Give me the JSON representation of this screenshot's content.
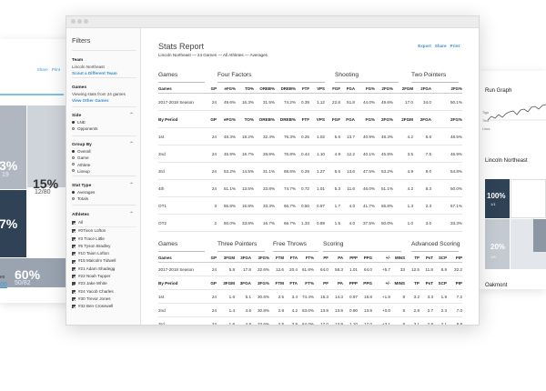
{
  "bg_left": {
    "links": [
      "Share",
      "Print"
    ],
    "tiles": [
      {
        "big": "3%",
        "small": "19"
      },
      {
        "big": "7%",
        "small": ""
      },
      {
        "big": "15%",
        "small": "12/80"
      },
      {
        "big": "60%",
        "small": "50/82"
      }
    ],
    "bottom_text": "es",
    "bottom_link": "00"
  },
  "bg_right": {
    "title": "Run Graph",
    "chart_labels": [
      "Tiga",
      "Tied",
      "Lincs"
    ],
    "title2": "Lincoln Northeast",
    "tiles": [
      {
        "big": "100%",
        "small": "1/1"
      },
      {
        "big": "20%",
        "small": "1/5"
      }
    ],
    "sub": "Oakmont"
  },
  "sidebar": {
    "heading": "Filters",
    "team": {
      "title": "Team",
      "value": "Lincoln Northeast",
      "link": "Scout a Different Team"
    },
    "games": {
      "title": "Games",
      "value": "Viewing stats from 24 games",
      "link": "View Other Games"
    },
    "side": {
      "title": "Side",
      "options": [
        {
          "label": "LNE",
          "on": true
        },
        {
          "label": "Opponents",
          "on": false
        }
      ]
    },
    "group_by": {
      "title": "Group By",
      "options": [
        {
          "label": "Overall",
          "on": true
        },
        {
          "label": "Game",
          "on": false
        },
        {
          "label": "Athlete",
          "on": false
        },
        {
          "label": "Lineup",
          "on": false
        }
      ]
    },
    "stat_type": {
      "title": "Stat Type",
      "options": [
        {
          "label": "Averages",
          "on": true
        },
        {
          "label": "Totals",
          "on": false
        }
      ]
    },
    "athletes": {
      "title": "Athletes",
      "items": [
        "All",
        "#0Tivon Lofton",
        "#3 Trace Little",
        "#5 Tyson Bradley",
        "#10 Taion Lofton",
        "#15 Malcolm Tidwell",
        "#21 Adam Shadegg",
        "#22 Noah Tupper",
        "#23 Jake White",
        "#24 Yacob Charles",
        "#30 Trevor Jones",
        "#32 Ben Crosswell"
      ]
    }
  },
  "report": {
    "title": "Stats Report",
    "breadcrumb": "Lincoln Northeast — 24 Games — All Athletes — Averages",
    "actions": [
      "Export",
      "Share",
      "Print"
    ]
  },
  "table1": {
    "groups": [
      "Games",
      "Four Factors",
      "Shooting",
      "Two Pointers"
    ],
    "headers": [
      "Games",
      "GP",
      "eFG%",
      "TO%",
      "OREB%",
      "DREB%",
      "FTF",
      "VPS",
      "FGF",
      "FGA",
      "FG%",
      "2FG%",
      "2FGM",
      "2FGA",
      "2FG%"
    ],
    "rows": [
      [
        "2017-2018 Season",
        "24",
        "49.6%",
        "16.3%",
        "31.5%",
        "74.2%",
        "0.39",
        "1.12",
        "22.8",
        "51.8",
        "44.0%",
        "49.6%",
        "17.0",
        "34.0",
        "50.1%"
      ],
      [
        "By Period",
        "GP",
        "eFG%",
        "TO%",
        "OREB%",
        "DREB%",
        "FTF",
        "VPS",
        "FGF",
        "FGA",
        "FG%",
        "2FG%",
        "2FGM",
        "2FGA",
        "2FG%"
      ],
      [
        "1st",
        "24",
        "48.3%",
        "18.2%",
        "32.4%",
        "76.3%",
        "0.25",
        "1.02",
        "5.6",
        "13.7",
        "40.9%",
        "48.3%",
        "4.2",
        "8.6",
        "48.5%"
      ],
      [
        "2nd",
        "24",
        "45.9%",
        "16.7%",
        "28.9%",
        "76.8%",
        "0.44",
        "1.10",
        "4.9",
        "12.2",
        "40.1%",
        "45.9%",
        "3.5",
        "7.5",
        "46.9%"
      ],
      [
        "3rd",
        "24",
        "53.2%",
        "14.5%",
        "31.1%",
        "68.6%",
        "0.29",
        "1.27",
        "6.5",
        "13.6",
        "47.5%",
        "53.2%",
        "4.9",
        "9.0",
        "54.8%"
      ],
      [
        "4th",
        "24",
        "51.1%",
        "13.5%",
        "33.8%",
        "74.7%",
        "0.72",
        "1.01",
        "5.3",
        "11.6",
        "46.0%",
        "51.1%",
        "4.2",
        "8.3",
        "50.0%"
      ],
      [
        "OT1",
        "3",
        "65.8%",
        "16.8%",
        "33.3%",
        "66.7%",
        "0.50",
        "0.97",
        "1.7",
        "4.0",
        "41.7%",
        "65.8%",
        "1.3",
        "2.3",
        "57.1%"
      ],
      [
        "OT2",
        "2",
        "50.0%",
        "33.8%",
        "16.7%",
        "66.7%",
        "1.33",
        "0.89",
        "1.5",
        "4.0",
        "37.5%",
        "50.0%",
        "1.0",
        "3.0",
        "33.3%"
      ]
    ]
  },
  "table2": {
    "groups": [
      "Games",
      "Three Pointers",
      "Free Throws",
      "Scoring",
      "Advanced Scoring"
    ],
    "headers": [
      "Games",
      "GP",
      "3FGM",
      "3FGA",
      "3FG%",
      "FTM",
      "FTA",
      "FT%",
      "PF",
      "PA",
      "PPP",
      "PPG",
      "+/-",
      "MINS",
      "TP",
      "PsT",
      "SCP",
      "PIP"
    ],
    "rows": [
      [
        "2017-2018 Season",
        "24",
        "5.8",
        "17.8",
        "32.6%",
        "12.6",
        "20.4",
        "61.6%",
        "64.0",
        "58.3",
        "1.01",
        "64.0",
        "+5.7",
        "33",
        "12.5",
        "11.8",
        "8.9",
        "32.2"
      ],
      [
        "By Period",
        "GP",
        "3FGM",
        "3FGA",
        "3FG%",
        "FTM",
        "FTA",
        "FT%",
        "PF",
        "PA",
        "PPP",
        "PPG",
        "+/-",
        "MINS",
        "TP",
        "PsT",
        "SCP",
        "PIP"
      ],
      [
        "1st",
        "24",
        "1.6",
        "5.1",
        "30.6%",
        "2.5",
        "3.4",
        "74.4%",
        "15.3",
        "14.3",
        "0.97",
        "15.8",
        "+1.8",
        "8",
        "3.2",
        "3.3",
        "1.9",
        "7.2"
      ],
      [
        "2nd",
        "24",
        "1.4",
        "4.6",
        "30.8%",
        "2.8",
        "4.2",
        "63.0%",
        "13.8",
        "13.8",
        "0.90",
        "13.8",
        "+0.0",
        "8",
        "2.8",
        "2.7",
        "2.3",
        "7.0"
      ],
      [
        "3rd",
        "24",
        "1.6",
        "4.8",
        "33.6%",
        "2.5",
        "3.9",
        "64.0%",
        "17.0",
        "13.9",
        "1.10",
        "17.0",
        "+3.1",
        "8",
        "3.1",
        "2.8",
        "2.1",
        "8.9"
      ]
    ]
  }
}
